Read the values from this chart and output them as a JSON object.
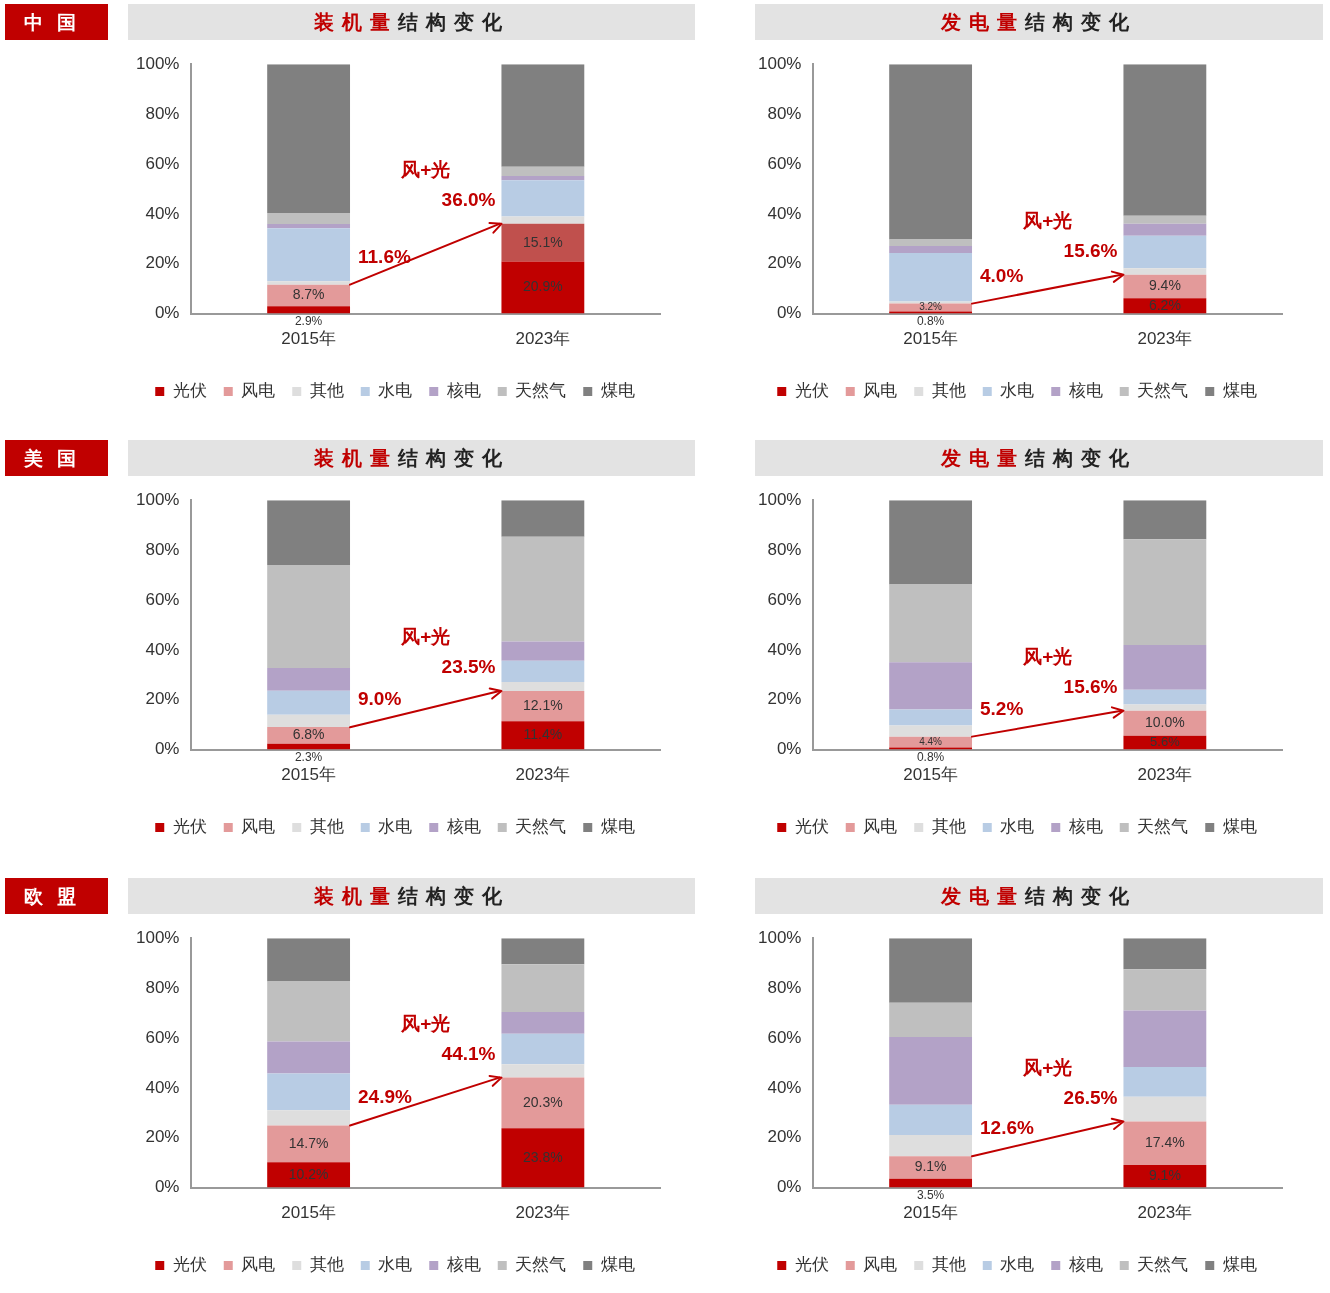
{
  "chart_data": [
    {
      "type": "bar",
      "subtitle": "中国",
      "title": "装机量结构变化",
      "categories": [
        "2015年",
        "2023年"
      ],
      "stacked": true,
      "legend": "bottom",
      "ylim": [
        0,
        100
      ],
      "yticks": [
        {
          "value": 0,
          "label": "0%"
        },
        {
          "value": 20,
          "label": "20%"
        },
        {
          "value": 40,
          "label": "40%"
        },
        {
          "value": 60,
          "label": "60%"
        },
        {
          "value": 80,
          "label": "80%"
        },
        {
          "value": 100,
          "label": "100%"
        }
      ],
      "series": [
        {
          "name": "光伏",
          "color": "#c00000",
          "values": [
            2.9,
            20.9
          ],
          "value_labels": [
            "2.9%",
            "20.9%"
          ]
        },
        {
          "name": "风电",
          "color": "#e39a9a",
          "colors": [
            "#e39a9a",
            "#c0504d"
          ],
          "values": [
            8.7,
            15.1
          ],
          "value_labels": [
            "8.7%",
            "15.1%"
          ]
        },
        {
          "name": "其他",
          "color": "#dedede",
          "values": [
            1.4,
            2.9
          ]
        },
        {
          "name": "水电",
          "color": "#b8cce4",
          "values": [
            21.2,
            14.6
          ]
        },
        {
          "name": "核电",
          "color": "#b3a2c7",
          "values": [
            1.7,
            1.7
          ]
        },
        {
          "name": "天然气",
          "color": "#bfbfbf",
          "values": [
            4.4,
            3.7
          ]
        },
        {
          "name": "煤电",
          "color": "#808080",
          "values": [
            59.7,
            41.1
          ]
        }
      ],
      "annotations": [
        "风+光",
        {
          "text": "11.6%",
          "x": "2015年",
          "y": 11.6
        },
        {
          "text": "36.0%",
          "x": "2023年",
          "y": 36.0
        }
      ]
    },
    {
      "type": "bar",
      "title": "发电量结构变化",
      "categories": [
        "2015年",
        "2023年"
      ],
      "stacked": true,
      "legend": "bottom",
      "ylim": [
        0,
        100
      ],
      "yticks": [
        {
          "value": 0,
          "label": "0%"
        },
        {
          "value": 20,
          "label": "20%"
        },
        {
          "value": 40,
          "label": "40%"
        },
        {
          "value": 60,
          "label": "60%"
        },
        {
          "value": 80,
          "label": "80%"
        },
        {
          "value": 100,
          "label": "100%"
        }
      ],
      "series": [
        {
          "name": "光伏",
          "color": "#c00000",
          "values": [
            0.8,
            6.2
          ],
          "value_labels": [
            "0.8%",
            "6.2%"
          ]
        },
        {
          "name": "风电",
          "color": "#e39a9a",
          "values": [
            3.2,
            9.4
          ],
          "value_labels": [
            "3.2%",
            "9.4%"
          ]
        },
        {
          "name": "其他",
          "color": "#dedede",
          "values": [
            0.9,
            2.6
          ]
        },
        {
          "name": "水电",
          "color": "#b8cce4",
          "values": [
            19.4,
            13.0
          ]
        },
        {
          "name": "核电",
          "color": "#b3a2c7",
          "values": [
            2.8,
            4.8
          ]
        },
        {
          "name": "天然气",
          "color": "#bfbfbf",
          "values": [
            2.6,
            3.2
          ]
        },
        {
          "name": "煤电",
          "color": "#808080",
          "values": [
            70.3,
            60.8
          ]
        }
      ],
      "annotations": [
        "风+光",
        {
          "text": "4.0%",
          "x": "2015年",
          "y": 4.0
        },
        {
          "text": "15.6%",
          "x": "2023年",
          "y": 15.6
        }
      ]
    },
    {
      "type": "bar",
      "subtitle": "美国",
      "title": "装机量结构变化",
      "categories": [
        "2015年",
        "2023年"
      ],
      "stacked": true,
      "legend": "bottom",
      "ylim": [
        0,
        100
      ],
      "yticks": [
        {
          "value": 0,
          "label": "0%"
        },
        {
          "value": 20,
          "label": "20%"
        },
        {
          "value": 40,
          "label": "40%"
        },
        {
          "value": 60,
          "label": "60%"
        },
        {
          "value": 80,
          "label": "80%"
        },
        {
          "value": 100,
          "label": "100%"
        }
      ],
      "series": [
        {
          "name": "光伏",
          "color": "#c00000",
          "values": [
            2.3,
            11.4
          ],
          "value_labels": [
            "2.3%",
            "11.4%"
          ]
        },
        {
          "name": "风电",
          "color": "#e39a9a",
          "values": [
            6.8,
            12.1
          ],
          "value_labels": [
            "6.8%",
            "12.1%"
          ]
        },
        {
          "name": "其他",
          "color": "#dedede",
          "values": [
            4.9,
            3.6
          ]
        },
        {
          "name": "水电",
          "color": "#b8cce4",
          "values": [
            9.6,
            8.5
          ]
        },
        {
          "name": "核电",
          "color": "#b3a2c7",
          "values": [
            9.1,
            7.7
          ]
        },
        {
          "name": "天然气",
          "color": "#bfbfbf",
          "values": [
            41.3,
            42.0
          ]
        },
        {
          "name": "煤电",
          "color": "#808080",
          "values": [
            26.0,
            14.7
          ]
        }
      ],
      "annotations": [
        "风+光",
        {
          "text": "9.0%",
          "x": "2015年",
          "y": 9.0
        },
        {
          "text": "23.5%",
          "x": "2023年",
          "y": 23.5
        }
      ]
    },
    {
      "type": "bar",
      "title": "发电量结构变化",
      "categories": [
        "2015年",
        "2023年"
      ],
      "stacked": true,
      "legend": "bottom",
      "ylim": [
        0,
        100
      ],
      "yticks": [
        {
          "value": 0,
          "label": "0%"
        },
        {
          "value": 20,
          "label": "20%"
        },
        {
          "value": 40,
          "label": "40%"
        },
        {
          "value": 60,
          "label": "60%"
        },
        {
          "value": 80,
          "label": "80%"
        },
        {
          "value": 100,
          "label": "100%"
        }
      ],
      "series": [
        {
          "name": "光伏",
          "color": "#c00000",
          "values": [
            0.8,
            5.6
          ],
          "value_labels": [
            "0.8%",
            "5.6%"
          ]
        },
        {
          "name": "风电",
          "color": "#e39a9a",
          "values": [
            4.4,
            10.0
          ],
          "value_labels": [
            "4.4%",
            "10.0%"
          ]
        },
        {
          "name": "其他",
          "color": "#dedede",
          "values": [
            4.5,
            2.5
          ]
        },
        {
          "name": "水电",
          "color": "#b8cce4",
          "values": [
            6.4,
            5.9
          ]
        },
        {
          "name": "核电",
          "color": "#b3a2c7",
          "values": [
            18.9,
            17.9
          ]
        },
        {
          "name": "天然气",
          "color": "#bfbfbf",
          "values": [
            31.2,
            42.4
          ]
        },
        {
          "name": "煤电",
          "color": "#808080",
          "values": [
            33.8,
            15.7
          ]
        }
      ],
      "annotations": [
        "风+光",
        {
          "text": "5.2%",
          "x": "2015年",
          "y": 5.2
        },
        {
          "text": "15.6%",
          "x": "2023年",
          "y": 15.6
        }
      ]
    },
    {
      "type": "bar",
      "subtitle": "欧盟",
      "title": "装机量结构变化",
      "categories": [
        "2015年",
        "2023年"
      ],
      "stacked": true,
      "legend": "bottom",
      "ylim": [
        0,
        100
      ],
      "yticks": [
        {
          "value": 0,
          "label": "0%"
        },
        {
          "value": 20,
          "label": "20%"
        },
        {
          "value": 40,
          "label": "40%"
        },
        {
          "value": 60,
          "label": "60%"
        },
        {
          "value": 80,
          "label": "80%"
        },
        {
          "value": 100,
          "label": "100%"
        }
      ],
      "series": [
        {
          "name": "光伏",
          "color": "#c00000",
          "values": [
            10.2,
            23.8
          ],
          "value_labels": [
            "10.2%",
            "23.8%"
          ]
        },
        {
          "name": "风电",
          "color": "#e39a9a",
          "values": [
            14.7,
            20.3
          ],
          "value_labels": [
            "14.7%",
            "20.3%"
          ]
        },
        {
          "name": "其他",
          "color": "#dedede",
          "values": [
            6.1,
            5.4
          ]
        },
        {
          "name": "水电",
          "color": "#b8cce4",
          "values": [
            14.7,
            12.2
          ]
        },
        {
          "name": "核电",
          "color": "#b3a2c7",
          "values": [
            12.9,
            8.7
          ]
        },
        {
          "name": "天然气",
          "color": "#bfbfbf",
          "values": [
            24.0,
            19.2
          ]
        },
        {
          "name": "煤电",
          "color": "#808080",
          "values": [
            17.4,
            10.4
          ]
        }
      ],
      "annotations": [
        "风+光",
        {
          "text": "24.9%",
          "x": "2015年",
          "y": 24.9
        },
        {
          "text": "44.1%",
          "x": "2023年",
          "y": 44.1
        }
      ]
    },
    {
      "type": "bar",
      "title": "发电量结构变化",
      "categories": [
        "2015年",
        "2023年"
      ],
      "stacked": true,
      "legend": "bottom",
      "ylim": [
        0,
        100
      ],
      "yticks": [
        {
          "value": 0,
          "label": "0%"
        },
        {
          "value": 20,
          "label": "20%"
        },
        {
          "value": 40,
          "label": "40%"
        },
        {
          "value": 60,
          "label": "60%"
        },
        {
          "value": 80,
          "label": "80%"
        },
        {
          "value": 100,
          "label": "100%"
        }
      ],
      "series": [
        {
          "name": "光伏",
          "color": "#c00000",
          "values": [
            3.5,
            9.1
          ],
          "value_labels": [
            "3.5%",
            "9.1%"
          ]
        },
        {
          "name": "风电",
          "color": "#e39a9a",
          "values": [
            9.1,
            17.4
          ],
          "value_labels": [
            "9.1%",
            "17.4%"
          ]
        },
        {
          "name": "其他",
          "color": "#dedede",
          "values": [
            8.5,
            9.9
          ]
        },
        {
          "name": "水电",
          "color": "#b8cce4",
          "values": [
            12.1,
            12.0
          ]
        },
        {
          "name": "核电",
          "color": "#b3a2c7",
          "values": [
            27.2,
            22.6
          ]
        },
        {
          "name": "天然气",
          "color": "#bfbfbf",
          "values": [
            13.7,
            16.6
          ]
        },
        {
          "name": "煤电",
          "color": "#808080",
          "values": [
            25.9,
            12.4
          ]
        }
      ],
      "annotations": [
        "风+光",
        {
          "text": "12.6%",
          "x": "2015年",
          "y": 12.6
        },
        {
          "text": "26.5%",
          "x": "2023年",
          "y": 26.5
        }
      ]
    }
  ]
}
